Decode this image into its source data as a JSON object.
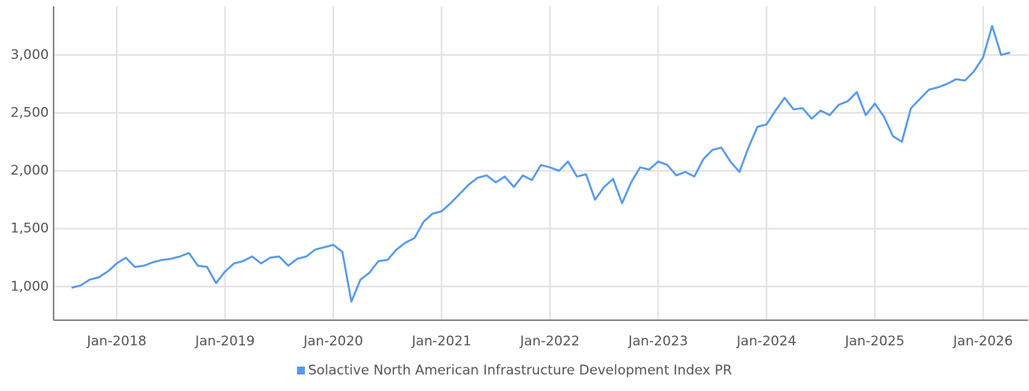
{
  "chart_data": {
    "type": "line",
    "x": [
      "Aug-2017",
      "Sep-2017",
      "Oct-2017",
      "Nov-2017",
      "Dec-2017",
      "Jan-2018",
      "Feb-2018",
      "Mar-2018",
      "Apr-2018",
      "May-2018",
      "Jun-2018",
      "Jul-2018",
      "Aug-2018",
      "Sep-2018",
      "Oct-2018",
      "Nov-2018",
      "Dec-2018",
      "Jan-2019",
      "Feb-2019",
      "Mar-2019",
      "Apr-2019",
      "May-2019",
      "Jun-2019",
      "Jul-2019",
      "Aug-2019",
      "Sep-2019",
      "Oct-2019",
      "Nov-2019",
      "Dec-2019",
      "Jan-2020",
      "Feb-2020",
      "Mar-2020",
      "Apr-2020",
      "May-2020",
      "Jun-2020",
      "Jul-2020",
      "Aug-2020",
      "Sep-2020",
      "Oct-2020",
      "Nov-2020",
      "Dec-2020",
      "Jan-2021",
      "Feb-2021",
      "Mar-2021",
      "Apr-2021",
      "May-2021",
      "Jun-2021",
      "Jul-2021",
      "Aug-2021",
      "Sep-2021",
      "Oct-2021",
      "Nov-2021",
      "Dec-2021",
      "Jan-2022",
      "Feb-2022",
      "Mar-2022",
      "Apr-2022",
      "May-2022",
      "Jun-2022",
      "Jul-2022",
      "Aug-2022",
      "Sep-2022",
      "Oct-2022",
      "Nov-2022",
      "Dec-2022",
      "Jan-2023",
      "Feb-2023",
      "Mar-2023",
      "Apr-2023",
      "May-2023",
      "Jun-2023",
      "Jul-2023",
      "Aug-2023",
      "Sep-2023",
      "Oct-2023",
      "Nov-2023",
      "Dec-2023",
      "Jan-2024",
      "Feb-2024",
      "Mar-2024",
      "Apr-2024",
      "May-2024",
      "Jun-2024",
      "Jul-2024",
      "Aug-2024",
      "Sep-2024",
      "Oct-2024",
      "Nov-2024",
      "Dec-2024",
      "Jan-2025",
      "Feb-2025",
      "Mar-2025",
      "Apr-2025",
      "May-2025",
      "Jun-2025",
      "Jul-2025",
      "Aug-2025",
      "Sep-2025",
      "Oct-2025",
      "Nov-2025",
      "Dec-2025",
      "Jan-2026",
      "Feb-2026",
      "Mar-2026",
      "Apr-2026"
    ],
    "series": [
      {
        "name": "Solactive North American Infrastructure Development Index PR",
        "color": "#5599ee",
        "values": [
          990,
          1010,
          1060,
          1080,
          1130,
          1200,
          1250,
          1170,
          1180,
          1210,
          1230,
          1240,
          1260,
          1290,
          1180,
          1170,
          1030,
          1130,
          1200,
          1220,
          1260,
          1200,
          1250,
          1260,
          1180,
          1240,
          1260,
          1320,
          1340,
          1360,
          1300,
          870,
          1060,
          1120,
          1220,
          1230,
          1320,
          1380,
          1420,
          1560,
          1630,
          1650,
          1720,
          1800,
          1880,
          1940,
          1960,
          1900,
          1950,
          1860,
          1960,
          1920,
          2050,
          2030,
          2000,
          2080,
          1950,
          1970,
          1750,
          1860,
          1930,
          1720,
          1900,
          2030,
          2010,
          2080,
          2050,
          1960,
          1990,
          1950,
          2100,
          2180,
          2200,
          2080,
          1990,
          2200,
          2380,
          2400,
          2520,
          2630,
          2530,
          2540,
          2450,
          2520,
          2480,
          2570,
          2600,
          2680,
          2480,
          2580,
          2470,
          2300,
          2250,
          2540,
          2620,
          2700,
          2720,
          2750,
          2790,
          2780,
          2860,
          2980,
          3250,
          3000,
          3020
        ]
      }
    ],
    "xlim": [
      "Jun-2017",
      "Jun-2026"
    ],
    "xticks": [
      "Jan-2018",
      "Jan-2019",
      "Jan-2020",
      "Jan-2021",
      "Jan-2022",
      "Jan-2023",
      "Jan-2024",
      "Jan-2025",
      "Jan-2026"
    ],
    "ylim": [
      710,
      3420
    ],
    "yticks": [
      {
        "value": 1000,
        "label": "1,000"
      },
      {
        "value": 1500,
        "label": "1,500"
      },
      {
        "value": 2000,
        "label": "2,000"
      },
      {
        "value": 2500,
        "label": "2,500"
      },
      {
        "value": 3000,
        "label": "3,000"
      }
    ],
    "grid": true
  }
}
